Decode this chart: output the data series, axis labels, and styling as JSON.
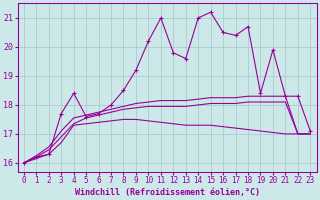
{
  "xlabel": "Windchill (Refroidissement éolien,°C)",
  "background_color": "#cce8e8",
  "grid_color": "#aacccc",
  "line_color": "#990099",
  "x_values": [
    0,
    1,
    2,
    3,
    4,
    5,
    6,
    7,
    8,
    9,
    10,
    11,
    12,
    13,
    14,
    15,
    16,
    17,
    18,
    19,
    20,
    21,
    22,
    23
  ],
  "line1": [
    16.0,
    16.2,
    16.3,
    17.7,
    18.4,
    17.6,
    17.7,
    18.0,
    18.5,
    19.2,
    20.2,
    21.0,
    19.8,
    19.6,
    21.0,
    21.2,
    20.5,
    20.4,
    20.7,
    18.4,
    19.9,
    18.3,
    18.3,
    17.1
  ],
  "line2": [
    16.0,
    16.15,
    16.3,
    16.7,
    17.3,
    17.35,
    17.4,
    17.45,
    17.5,
    17.5,
    17.45,
    17.4,
    17.35,
    17.3,
    17.3,
    17.3,
    17.25,
    17.2,
    17.15,
    17.1,
    17.05,
    17.0,
    17.0,
    17.0
  ],
  "line3": [
    16.0,
    16.25,
    16.55,
    17.1,
    17.55,
    17.65,
    17.75,
    17.85,
    17.95,
    18.05,
    18.1,
    18.15,
    18.15,
    18.15,
    18.2,
    18.25,
    18.25,
    18.25,
    18.3,
    18.3,
    18.3,
    18.3,
    17.0,
    17.0
  ],
  "line4": [
    16.0,
    16.2,
    16.45,
    16.9,
    17.35,
    17.55,
    17.65,
    17.75,
    17.85,
    17.9,
    17.95,
    17.95,
    17.95,
    17.95,
    18.0,
    18.05,
    18.05,
    18.05,
    18.1,
    18.1,
    18.1,
    18.1,
    17.0,
    17.0
  ],
  "xlim": [
    -0.5,
    23.5
  ],
  "ylim": [
    15.7,
    21.5
  ],
  "yticks": [
    16,
    17,
    18,
    19,
    20,
    21
  ],
  "xticks": [
    0,
    1,
    2,
    3,
    4,
    5,
    6,
    7,
    8,
    9,
    10,
    11,
    12,
    13,
    14,
    15,
    16,
    17,
    18,
    19,
    20,
    21,
    22,
    23
  ]
}
